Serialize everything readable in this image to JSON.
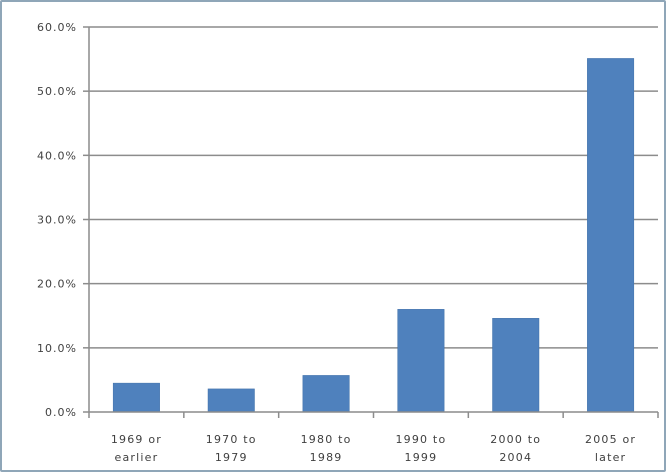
{
  "chart_data": {
    "type": "bar",
    "title": "",
    "xlabel": "",
    "ylabel": "",
    "categories": [
      [
        "1969 or",
        "earlier"
      ],
      [
        "1970 to",
        "1979"
      ],
      [
        "1980 to",
        "1989"
      ],
      [
        "1990 to",
        "1999"
      ],
      [
        "2000 to",
        "2004"
      ],
      [
        "2005 or",
        "later"
      ]
    ],
    "values": [
      4.5,
      3.6,
      5.7,
      16.0,
      14.6,
      55.1
    ],
    "ylim": [
      0,
      60
    ],
    "yticks": [
      0,
      10,
      20,
      30,
      40,
      50,
      60
    ],
    "ytick_labels": [
      "0.0%",
      "10.0%",
      "20.0%",
      "30.0%",
      "40.0%",
      "50.0%",
      "60.0%"
    ],
    "grid": true,
    "legend": "none",
    "colors": {
      "bar": "#4f81bd",
      "bar_edge": "#3f6fa8",
      "grid": "#8c8c8c",
      "axis": "#8c8c8c"
    }
  }
}
